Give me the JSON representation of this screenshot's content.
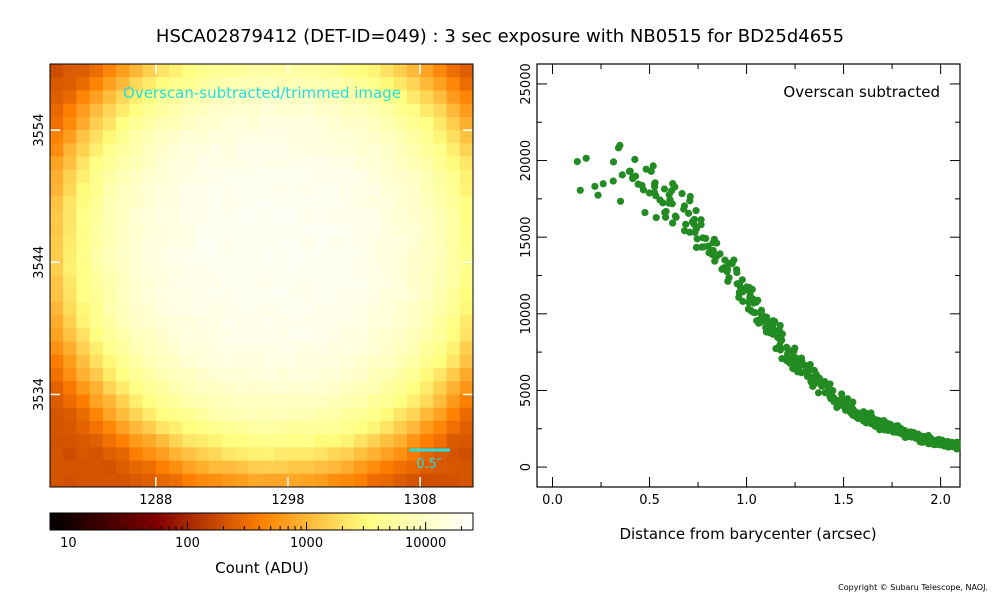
{
  "figure": {
    "title": "HSCA02879412 (DET-ID=049) :  3 sec exposure with NB0515 for BD25d4655",
    "copyright": "Copyright © Subaru Telescope, NAOJ."
  },
  "image_panel": {
    "annotation": "Overscan-subtracted/trimmed image",
    "scale_bar_label": "0.5″",
    "annotation_color": "#22e0e0",
    "x_ticks": [
      1288,
      1298,
      1308
    ],
    "y_ticks": [
      3534,
      3544,
      3554
    ],
    "x_range": [
      1280,
      1312
    ],
    "y_range": [
      3527,
      3559
    ],
    "center": [
      1297,
      3545
    ]
  },
  "colorbar": {
    "label": "Count (ADU)",
    "scale": "log",
    "range": [
      7,
      25000
    ],
    "tick_labels": [
      "10",
      "100",
      "1000",
      "10000"
    ]
  },
  "chart_data": {
    "type": "scatter",
    "annotation": "Overscan subtracted",
    "xlabel": "Distance from barycenter (arcsec)",
    "ylabel": "",
    "xlim": [
      -0.08,
      2.1
    ],
    "ylim": [
      -1300,
      26300
    ],
    "x_ticks": [
      "0.0",
      "0.5",
      "1.0",
      "1.5",
      "2.0"
    ],
    "y_ticks": [
      "0",
      "5000",
      "10000",
      "15000",
      "20000",
      "25000"
    ],
    "marker_color": "#228b22",
    "profile": {
      "model": "gaussian-like radial falloff",
      "peak": 18500,
      "half_width_arcsec": 1.1,
      "scatter": 2500,
      "n_points": 520,
      "x_max": 2.1
    }
  }
}
